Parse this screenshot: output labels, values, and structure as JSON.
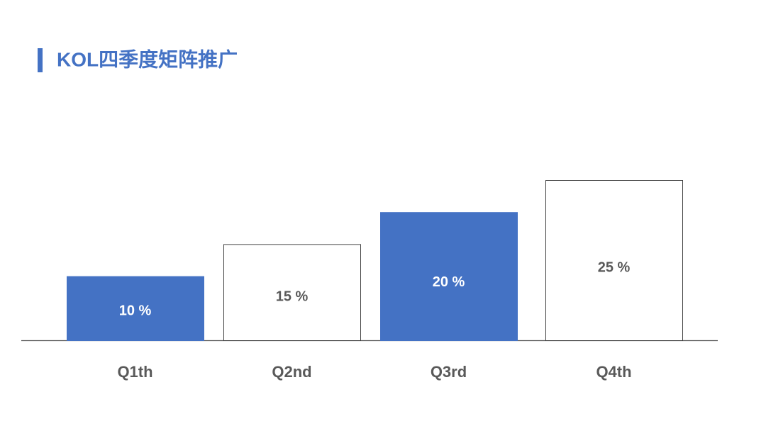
{
  "chart_data": {
    "type": "bar",
    "title": "KOL四季度矩阵推广",
    "categories": [
      "Q1th",
      "Q2nd",
      "Q3rd",
      "Q4th"
    ],
    "values": [
      10,
      15,
      20,
      25
    ],
    "value_labels": [
      "10 %",
      "15 %",
      "20 %",
      "25 %"
    ],
    "colors": [
      "#4472c4",
      "#ffffff",
      "#4472c4",
      "#ffffff"
    ]
  }
}
